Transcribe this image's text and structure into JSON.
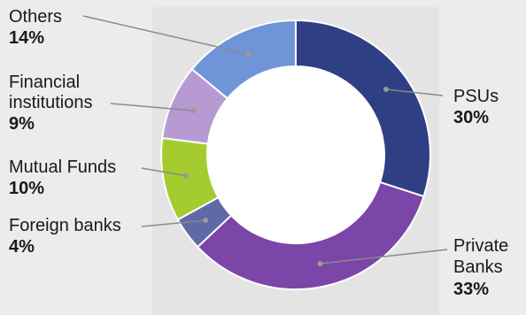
{
  "chart_data": {
    "type": "pie",
    "variant": "donut",
    "title": "",
    "slices": [
      {
        "name": "PSUs",
        "value": 30,
        "label": "30%",
        "color": "#2e3f83"
      },
      {
        "name": "Private Banks",
        "value": 33,
        "label": "33%",
        "color": "#7c45a8"
      },
      {
        "name": "Foreign banks",
        "value": 4,
        "label": "4%",
        "color": "#5e6aa6"
      },
      {
        "name": "Mutual Funds",
        "value": 10,
        "label": "10%",
        "color": "#a4cc2e"
      },
      {
        "name": "Financial institutions",
        "value": 9,
        "label": "9%",
        "color": "#b89ad2"
      },
      {
        "name": "Others",
        "value": 14,
        "label": "14%",
        "color": "#6f95d8"
      }
    ]
  },
  "labels": {
    "psus": {
      "name": "PSUs",
      "pct": "30%"
    },
    "private_banks": {
      "name_line1": "Private",
      "name_line2": "Banks",
      "pct": "33%"
    },
    "foreign_banks": {
      "name": "Foreign banks",
      "pct": "4%"
    },
    "mutual_funds": {
      "name": "Mutual Funds",
      "pct": "10%"
    },
    "financial_institutions": {
      "name_line1": "Financial",
      "name_line2": "institutions",
      "pct": "9%"
    },
    "others": {
      "name": "Others",
      "pct": "14%"
    }
  }
}
